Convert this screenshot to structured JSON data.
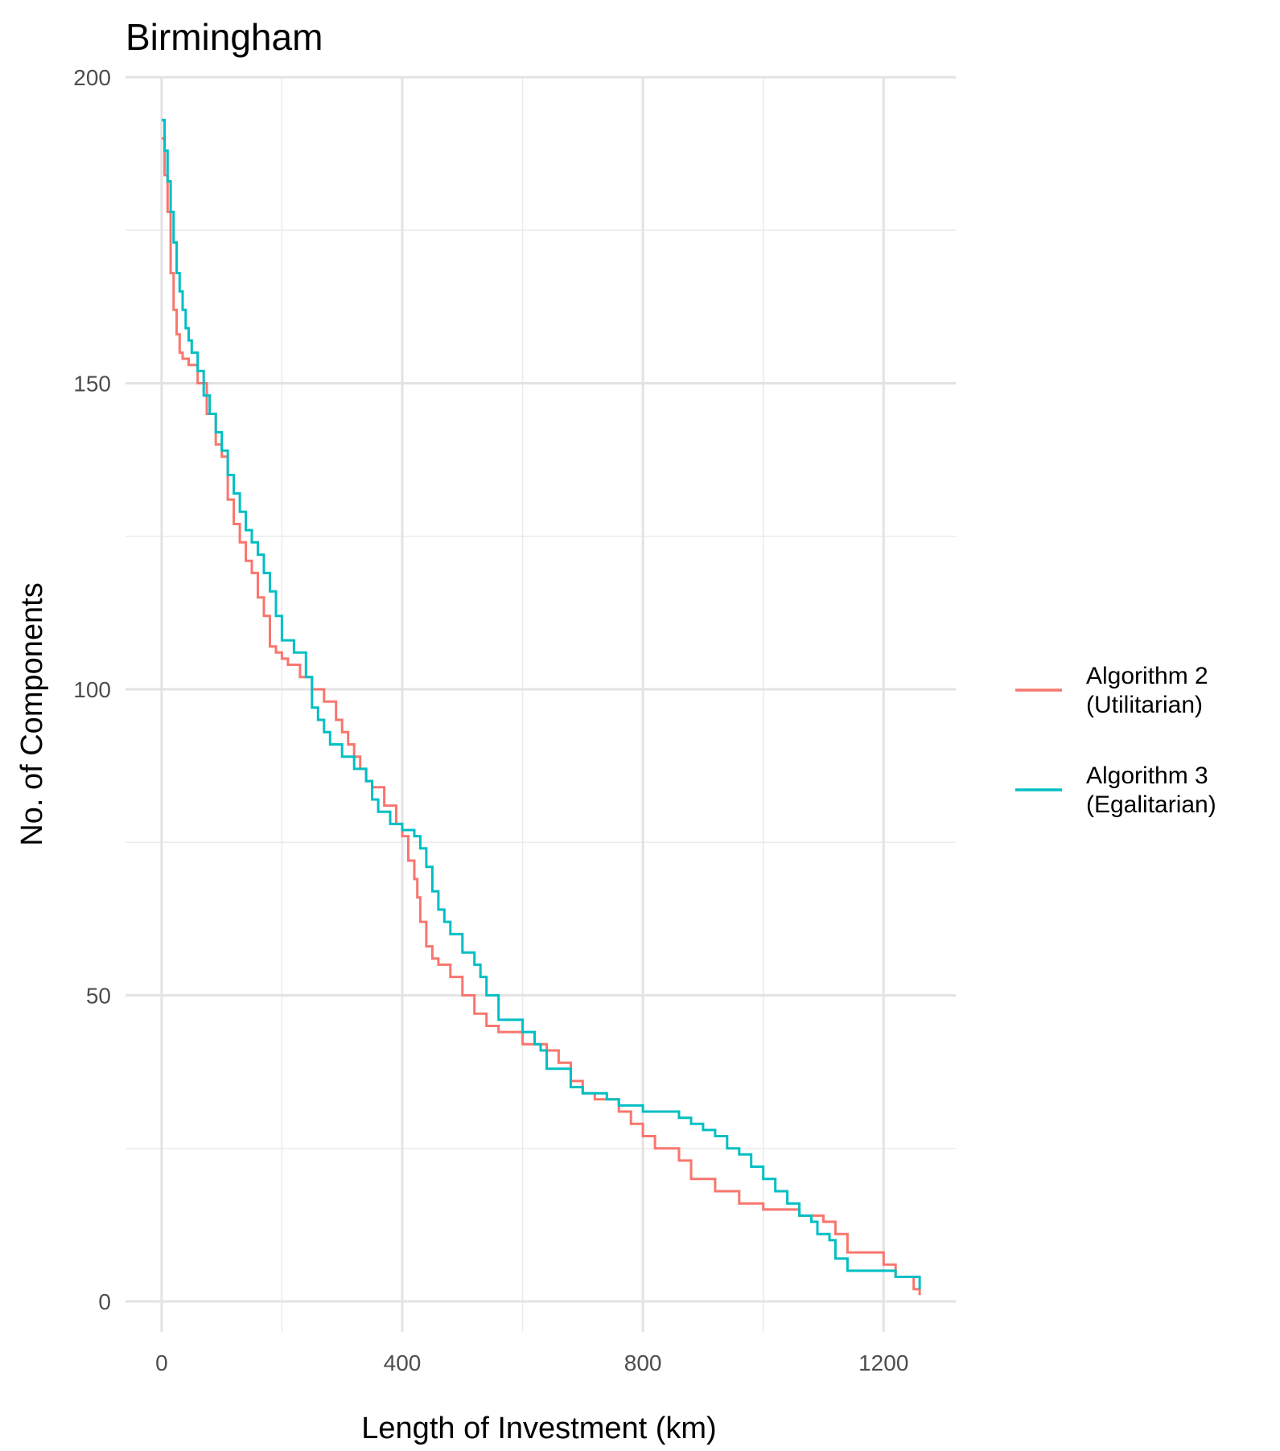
{
  "chart_data": {
    "type": "line",
    "title": "Birmingham",
    "xlabel": "Length of Investment (km)",
    "ylabel": "No. of Components",
    "xlim": [
      -60,
      1320
    ],
    "ylim": [
      -5,
      200
    ],
    "x_ticks": [
      0,
      400,
      800,
      1200
    ],
    "x_tick_labels": [
      "0",
      "400",
      "800",
      "1200"
    ],
    "x_minor_ticks": [
      200,
      600,
      1000
    ],
    "y_ticks": [
      0,
      50,
      100,
      150,
      200
    ],
    "y_tick_labels": [
      "0",
      "50",
      "100",
      "150",
      "200"
    ],
    "y_minor_ticks": [
      25,
      75,
      125,
      175
    ],
    "grid": true,
    "step": true,
    "legend": "right",
    "series": [
      {
        "name": "Algorithm 2\n(Utilitarian)",
        "color": "#F8766D",
        "x": [
          0,
          5,
          10,
          15,
          20,
          25,
          30,
          35,
          45,
          60,
          75,
          90,
          100,
          110,
          120,
          130,
          140,
          150,
          160,
          170,
          180,
          190,
          200,
          210,
          230,
          250,
          270,
          290,
          300,
          310,
          320,
          330,
          340,
          350,
          370,
          390,
          400,
          410,
          420,
          425,
          430,
          440,
          450,
          460,
          480,
          500,
          520,
          540,
          560,
          600,
          640,
          660,
          680,
          700,
          720,
          760,
          780,
          800,
          820,
          860,
          880,
          920,
          960,
          1000,
          1040,
          1060,
          1100,
          1120,
          1140,
          1200,
          1220,
          1250,
          1260
        ],
        "y": [
          190,
          184,
          178,
          168,
          162,
          158,
          155,
          154,
          153,
          150,
          145,
          140,
          138,
          131,
          127,
          124,
          121,
          119,
          115,
          112,
          107,
          106,
          105,
          104,
          102,
          100,
          98,
          95,
          93,
          91,
          89,
          87,
          85,
          84,
          81,
          78,
          76,
          72,
          69,
          66,
          62,
          58,
          56,
          55,
          53,
          50,
          47,
          45,
          44,
          42,
          41,
          39,
          36,
          34,
          33,
          31,
          29,
          27,
          25,
          23,
          20,
          18,
          16,
          15,
          15,
          14,
          13,
          11,
          8,
          6,
          4,
          2,
          1
        ]
      },
      {
        "name": "Algorithm 3\n(Egalitarian)",
        "color": "#00BFC4",
        "x": [
          0,
          5,
          10,
          15,
          20,
          25,
          30,
          35,
          40,
          45,
          50,
          60,
          70,
          80,
          90,
          100,
          110,
          120,
          130,
          140,
          150,
          160,
          170,
          180,
          190,
          200,
          220,
          240,
          250,
          260,
          270,
          280,
          300,
          320,
          340,
          350,
          360,
          380,
          400,
          420,
          430,
          440,
          450,
          460,
          470,
          480,
          500,
          520,
          530,
          540,
          560,
          600,
          620,
          630,
          640,
          680,
          700,
          740,
          760,
          800,
          860,
          880,
          900,
          920,
          940,
          960,
          980,
          1000,
          1020,
          1040,
          1060,
          1080,
          1090,
          1110,
          1120,
          1140,
          1180,
          1200,
          1220,
          1260
        ],
        "y": [
          193,
          188,
          183,
          178,
          173,
          168,
          165,
          162,
          159,
          157,
          155,
          152,
          148,
          145,
          142,
          139,
          135,
          132,
          129,
          126,
          124,
          122,
          119,
          116,
          112,
          108,
          106,
          102,
          97,
          95,
          93,
          91,
          89,
          87,
          85,
          82,
          80,
          78,
          77,
          76,
          74,
          71,
          67,
          64,
          62,
          60,
          57,
          55,
          53,
          50,
          46,
          44,
          42,
          41,
          38,
          35,
          34,
          33,
          32,
          31,
          30,
          29,
          28,
          27,
          25,
          24,
          22,
          20,
          18,
          16,
          14,
          13,
          11,
          10,
          7,
          5,
          5,
          5,
          4,
          2
        ]
      }
    ]
  }
}
